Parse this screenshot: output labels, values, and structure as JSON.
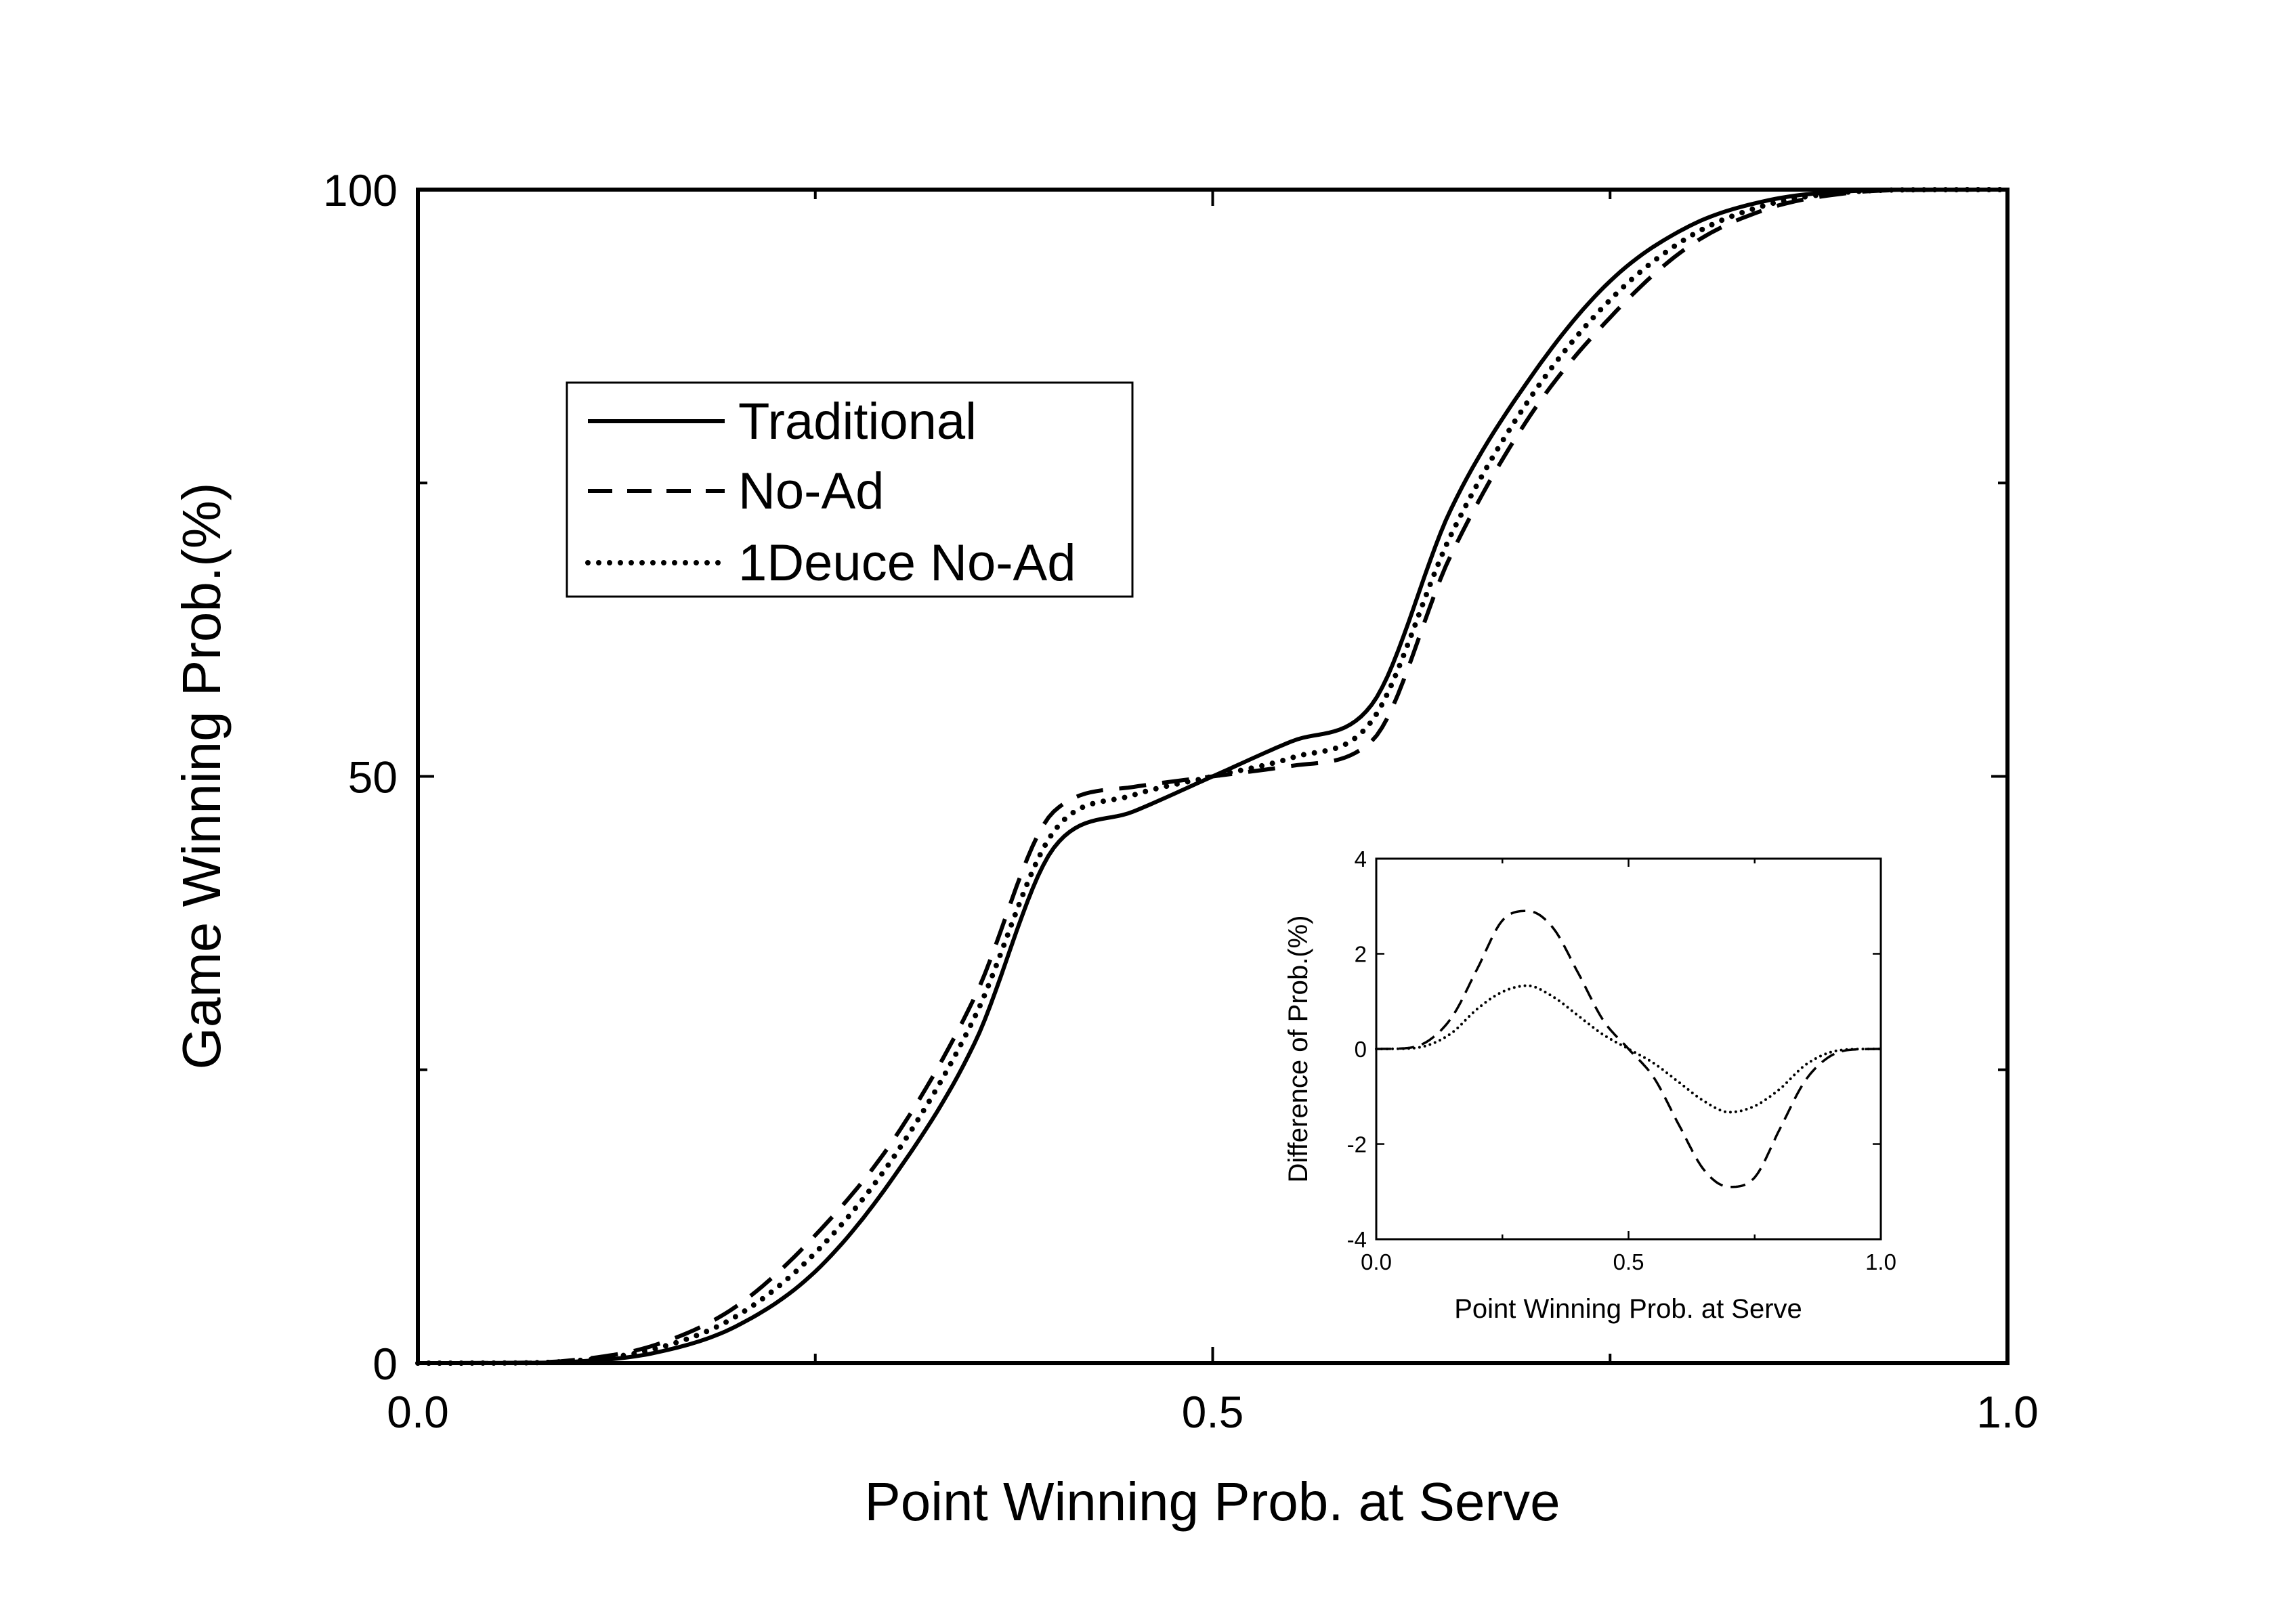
{
  "chart_data": [
    {
      "type": "line",
      "title": "",
      "xlabel": "Point Winning Prob. at Serve",
      "ylabel": "Game Winning Prob.(%)",
      "xlim": [
        0,
        1
      ],
      "ylim": [
        0,
        100
      ],
      "x_ticks": [
        0.0,
        0.5,
        1.0
      ],
      "x_tick_labels": [
        "0.0",
        "0.5",
        "1.0"
      ],
      "x_minor_ticks": [
        0.25,
        0.75
      ],
      "y_ticks": [
        0,
        50,
        100
      ],
      "y_tick_labels": [
        "0",
        "50",
        "100"
      ],
      "y_minor_ticks": [
        25,
        75
      ],
      "grid": false,
      "legend_position": "upper-left",
      "x": [
        0,
        0.05,
        0.1,
        0.15,
        0.2,
        0.25,
        0.3,
        0.35,
        0.4,
        0.45,
        0.5,
        0.55,
        0.6,
        0.65,
        0.7,
        0.75,
        0.8,
        0.85,
        0.9,
        0.95,
        1.0
      ],
      "series": [
        {
          "name": "Traditional",
          "line_style": "solid",
          "values": [
            0,
            0.01,
            0.14,
            0.91,
            3.13,
            7.81,
            16.0,
            27.2,
            43.9,
            47.0,
            50.0,
            53.0,
            56.1,
            72.8,
            84.0,
            92.2,
            96.9,
            99.1,
            99.86,
            99.99,
            100
          ]
        },
        {
          "name": "No-Ad",
          "line_style": "dashed",
          "values": [
            0,
            0.02,
            0.29,
            1.58,
            4.81,
            10.9,
            19.2,
            31.1,
            47.0,
            49.1,
            50.0,
            50.9,
            53.0,
            68.9,
            80.8,
            89.1,
            95.2,
            98.4,
            99.71,
            99.98,
            100
          ]
        },
        {
          "name": "1Deuce No-Ad",
          "line_style": "dotted",
          "values": [
            0,
            0.01,
            0.21,
            1.25,
            3.97,
            9.4,
            17.7,
            29.4,
            45.3,
            48.4,
            50.0,
            51.6,
            54.7,
            70.6,
            82.3,
            90.6,
            96.0,
            98.75,
            99.79,
            99.99,
            100
          ]
        }
      ]
    },
    {
      "type": "line",
      "title": "",
      "xlabel": "Point Winning Prob. at Serve",
      "ylabel": "Difference of Prob.(%)",
      "xlim": [
        0,
        1
      ],
      "ylim": [
        -4,
        4
      ],
      "x_ticks": [
        0.0,
        0.5,
        1.0
      ],
      "x_tick_labels": [
        "0.0",
        "0.5",
        "1.0"
      ],
      "x_minor_ticks": [
        0.25,
        0.75
      ],
      "y_ticks": [
        -4,
        -2,
        0,
        2,
        4
      ],
      "y_tick_labels": [
        "-4",
        "-2",
        "0",
        "2",
        "4"
      ],
      "grid": false,
      "x": [
        0,
        0.05,
        0.1,
        0.15,
        0.2,
        0.25,
        0.3,
        0.35,
        0.4,
        0.45,
        0.5,
        0.55,
        0.6,
        0.65,
        0.7,
        0.75,
        0.8,
        0.85,
        0.9,
        0.95,
        1.0
      ],
      "series": [
        {
          "line_style": "dashed",
          "values": [
            0,
            0.01,
            0.15,
            0.67,
            1.68,
            2.7,
            2.9,
            2.55,
            1.6,
            0.6,
            0,
            -0.6,
            -1.6,
            -2.55,
            -2.9,
            -2.7,
            -1.68,
            -0.67,
            -0.15,
            -0.01,
            0
          ]
        },
        {
          "line_style": "dotted",
          "values": [
            0,
            0.005,
            0.07,
            0.34,
            0.84,
            1.2,
            1.33,
            1.1,
            0.7,
            0.3,
            0,
            -0.3,
            -0.7,
            -1.1,
            -1.33,
            -1.2,
            -0.84,
            -0.34,
            -0.07,
            -0.005,
            0
          ]
        }
      ]
    }
  ]
}
